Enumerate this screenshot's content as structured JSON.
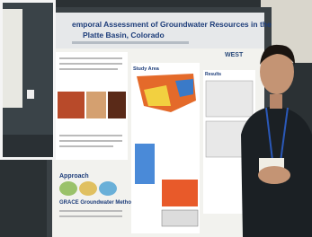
{
  "poster": {
    "title_lines": [
      "emporal Assessment of Groundwater Resources in the",
      "Platte Basin, Colorado"
    ],
    "logo": "WEST",
    "sections": {
      "study_area": "Study Area",
      "results": "Results",
      "approach": "Approach",
      "methods": "GRACE Groundwater Methods"
    }
  }
}
